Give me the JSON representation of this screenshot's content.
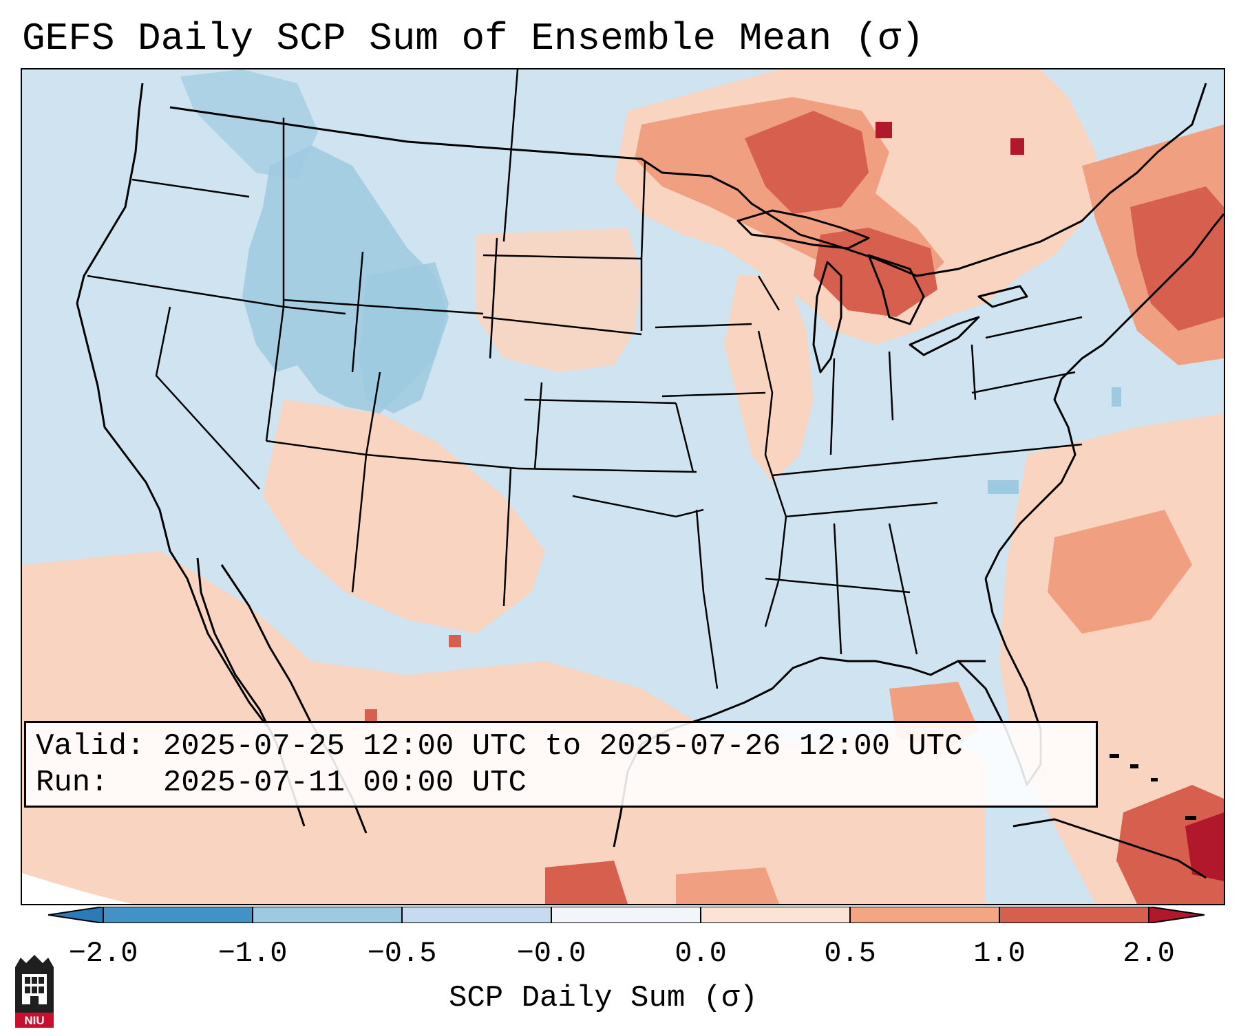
{
  "title": "GEFS Daily SCP Sum of Ensemble Mean (σ)",
  "info": {
    "valid_line": "Valid: 2025-07-25 12:00 UTC to 2025-07-26 12:00 UTC",
    "run_line": "Run:   2025-07-11 00:00 UTC"
  },
  "colorbar": {
    "label": "SCP Daily Sum (σ)",
    "ticks": [
      "−2.0",
      "−1.0",
      "−0.5",
      "−0.0",
      "0.0",
      "0.5",
      "1.0",
      "2.0"
    ],
    "bin_colors": [
      "#4292c6",
      "#9ecae1",
      "#c6dbef",
      "#f2f6fa",
      "#fbe3d6",
      "#f4a582",
      "#d6604d",
      "#b2182b"
    ],
    "under_color": "#2c7bb6",
    "over_color": "#b2182b"
  },
  "map": {
    "background_color": "#cfe4f0",
    "low_color": "#9ecae1",
    "high_color": "#f9d4c0",
    "hot_color": "#f0a080",
    "hotter_color": "#d6604d",
    "hottest_color": "#b2182b",
    "line_color": "#000000",
    "extent_label": "Continental United States"
  },
  "logo": {
    "text": "NIU"
  }
}
